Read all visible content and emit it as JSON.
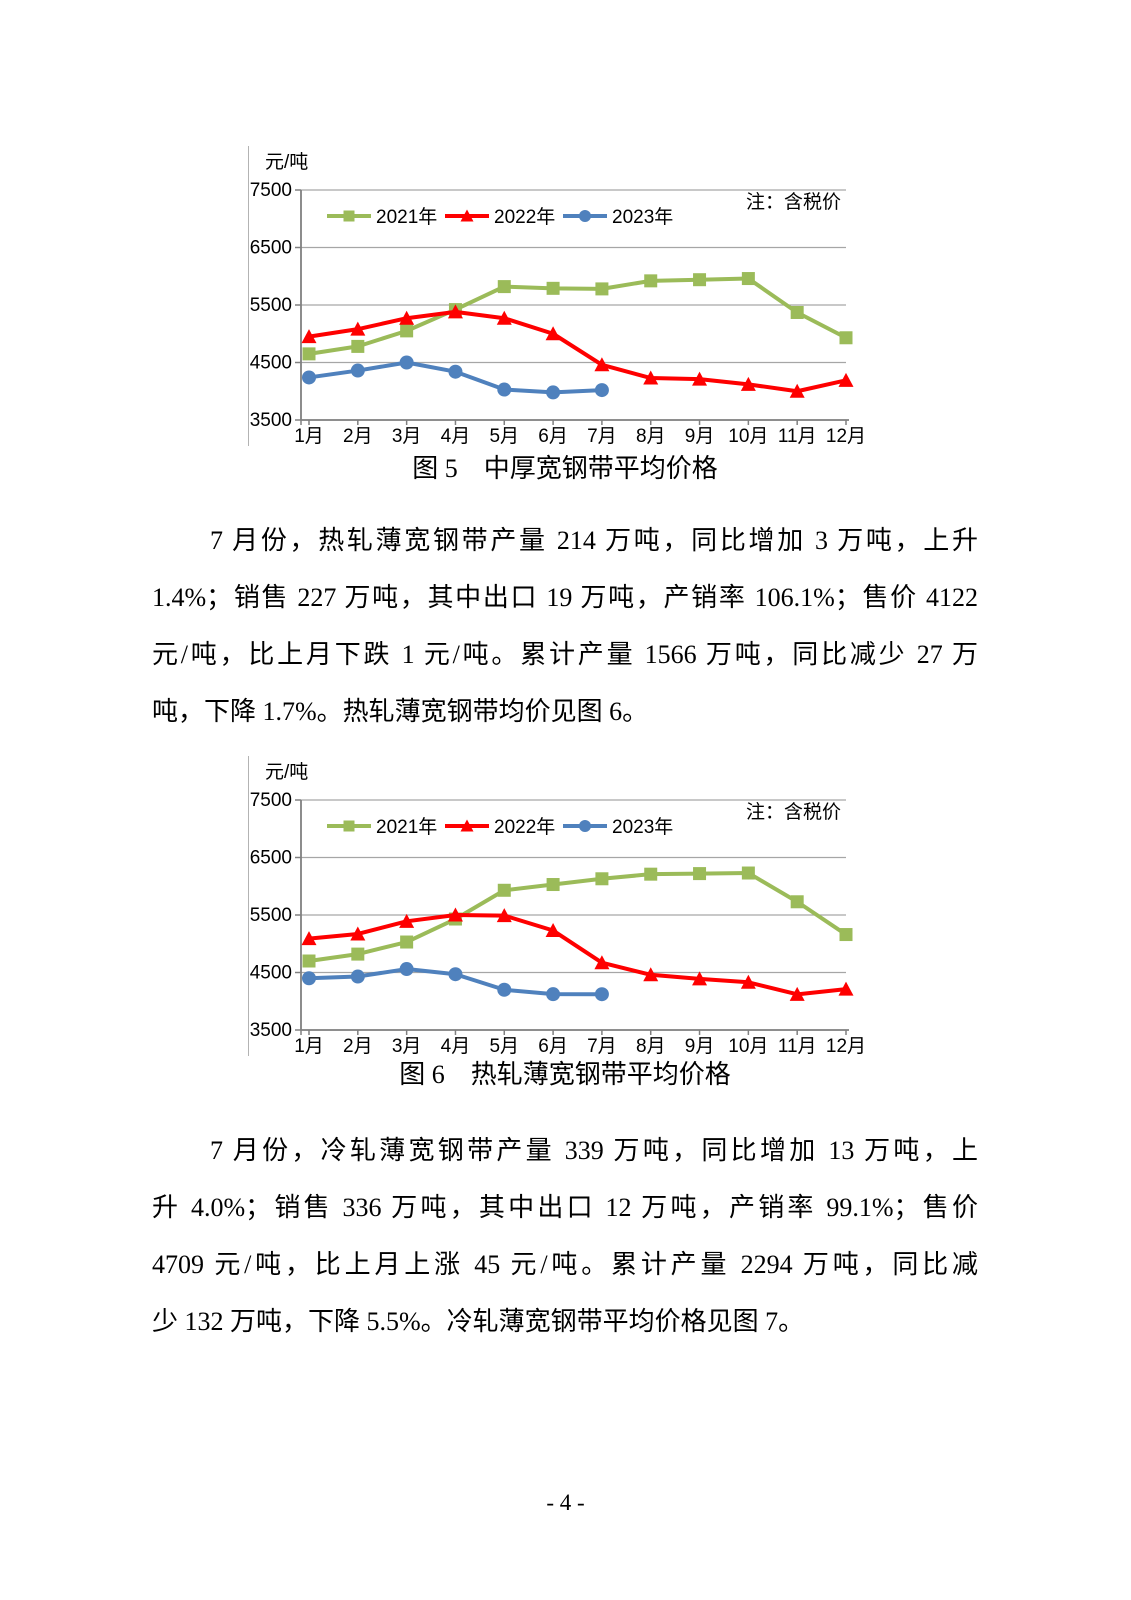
{
  "page": {
    "number": "- 4 -"
  },
  "figures": [
    {
      "caption": "图 5　中厚宽钢带平均价格"
    },
    {
      "caption": "图 6　热轧薄宽钢带平均价格"
    }
  ],
  "paragraphs": [
    {
      "topic": "热轧薄宽钢带",
      "lines": [
        "7 月份，热轧薄宽钢带产量 214 万吨，同比增加 3 万吨，上升",
        "1.4%；销售 227 万吨，其中出口 19 万吨，产销率 106.1%；售价 4122",
        "元/吨，比上月下跌 1 元/吨。累计产量 1566 万吨，同比减少 27 万",
        "吨，下降 1.7%。热轧薄宽钢带均价见图 6。"
      ]
    },
    {
      "topic": "冷轧薄宽钢带",
      "lines": [
        "7 月份，冷轧薄宽钢带产量 339 万吨，同比增加 13 万吨，上",
        "升 4.0%；销售 336 万吨，其中出口 12 万吨，产销率 99.1%；售价",
        "4709 元/吨，比上月上涨 45 元/吨。累计产量 2294 万吨，同比减",
        "少 132 万吨，下降 5.5%。冷轧薄宽钢带平均价格见图 7。"
      ]
    }
  ],
  "chart_data": [
    {
      "type": "line",
      "title": "图 5　中厚宽钢带平均价格",
      "ylabel": "元/吨",
      "note": "注：含税价",
      "categories": [
        "1月",
        "2月",
        "3月",
        "4月",
        "5月",
        "6月",
        "7月",
        "8月",
        "9月",
        "10月",
        "11月",
        "12月"
      ],
      "ylim": [
        3500,
        7500
      ],
      "yticks": [
        3500,
        4500,
        5500,
        6500,
        7500
      ],
      "grid": true,
      "legend_position": "top-left",
      "colors": {
        "gridline": "#a6a6a6",
        "axis": "#808080",
        "text": "#000000"
      },
      "series": [
        {
          "name": "2021年",
          "color": "#9bbb59",
          "marker": "square",
          "values": [
            4650,
            4780,
            5050,
            5420,
            5820,
            5790,
            5780,
            5920,
            5940,
            5960,
            5370,
            4930
          ]
        },
        {
          "name": "2022年",
          "color": "#fe0000",
          "marker": "triangle",
          "values": [
            4950,
            5080,
            5270,
            5380,
            5270,
            5000,
            4460,
            4230,
            4210,
            4120,
            4000,
            4190
          ]
        },
        {
          "name": "2023年",
          "color": "#4f81bd",
          "marker": "circle",
          "values": [
            4240,
            4360,
            4500,
            4340,
            4030,
            3980,
            4020,
            null,
            null,
            null,
            null,
            null
          ]
        }
      ]
    },
    {
      "type": "line",
      "title": "图 6　热轧薄宽钢带平均价格",
      "ylabel": "元/吨",
      "note": "注：含税价",
      "categories": [
        "1月",
        "2月",
        "3月",
        "4月",
        "5月",
        "6月",
        "7月",
        "8月",
        "9月",
        "10月",
        "11月",
        "12月"
      ],
      "ylim": [
        3500,
        7500
      ],
      "yticks": [
        3500,
        4500,
        5500,
        6500,
        7500
      ],
      "grid": true,
      "legend_position": "top-left",
      "colors": {
        "gridline": "#a6a6a6",
        "axis": "#808080",
        "text": "#000000"
      },
      "series": [
        {
          "name": "2021年",
          "color": "#9bbb59",
          "marker": "square",
          "values": [
            4700,
            4820,
            5030,
            5430,
            5930,
            6030,
            6130,
            6210,
            6220,
            6230,
            5730,
            5160
          ]
        },
        {
          "name": "2022年",
          "color": "#fe0000",
          "marker": "triangle",
          "values": [
            5090,
            5170,
            5390,
            5500,
            5490,
            5230,
            4670,
            4460,
            4390,
            4330,
            4120,
            4210
          ]
        },
        {
          "name": "2023年",
          "color": "#4f81bd",
          "marker": "circle",
          "values": [
            4400,
            4430,
            4560,
            4470,
            4200,
            4123,
            4122,
            null,
            null,
            null,
            null,
            null
          ]
        }
      ]
    }
  ]
}
